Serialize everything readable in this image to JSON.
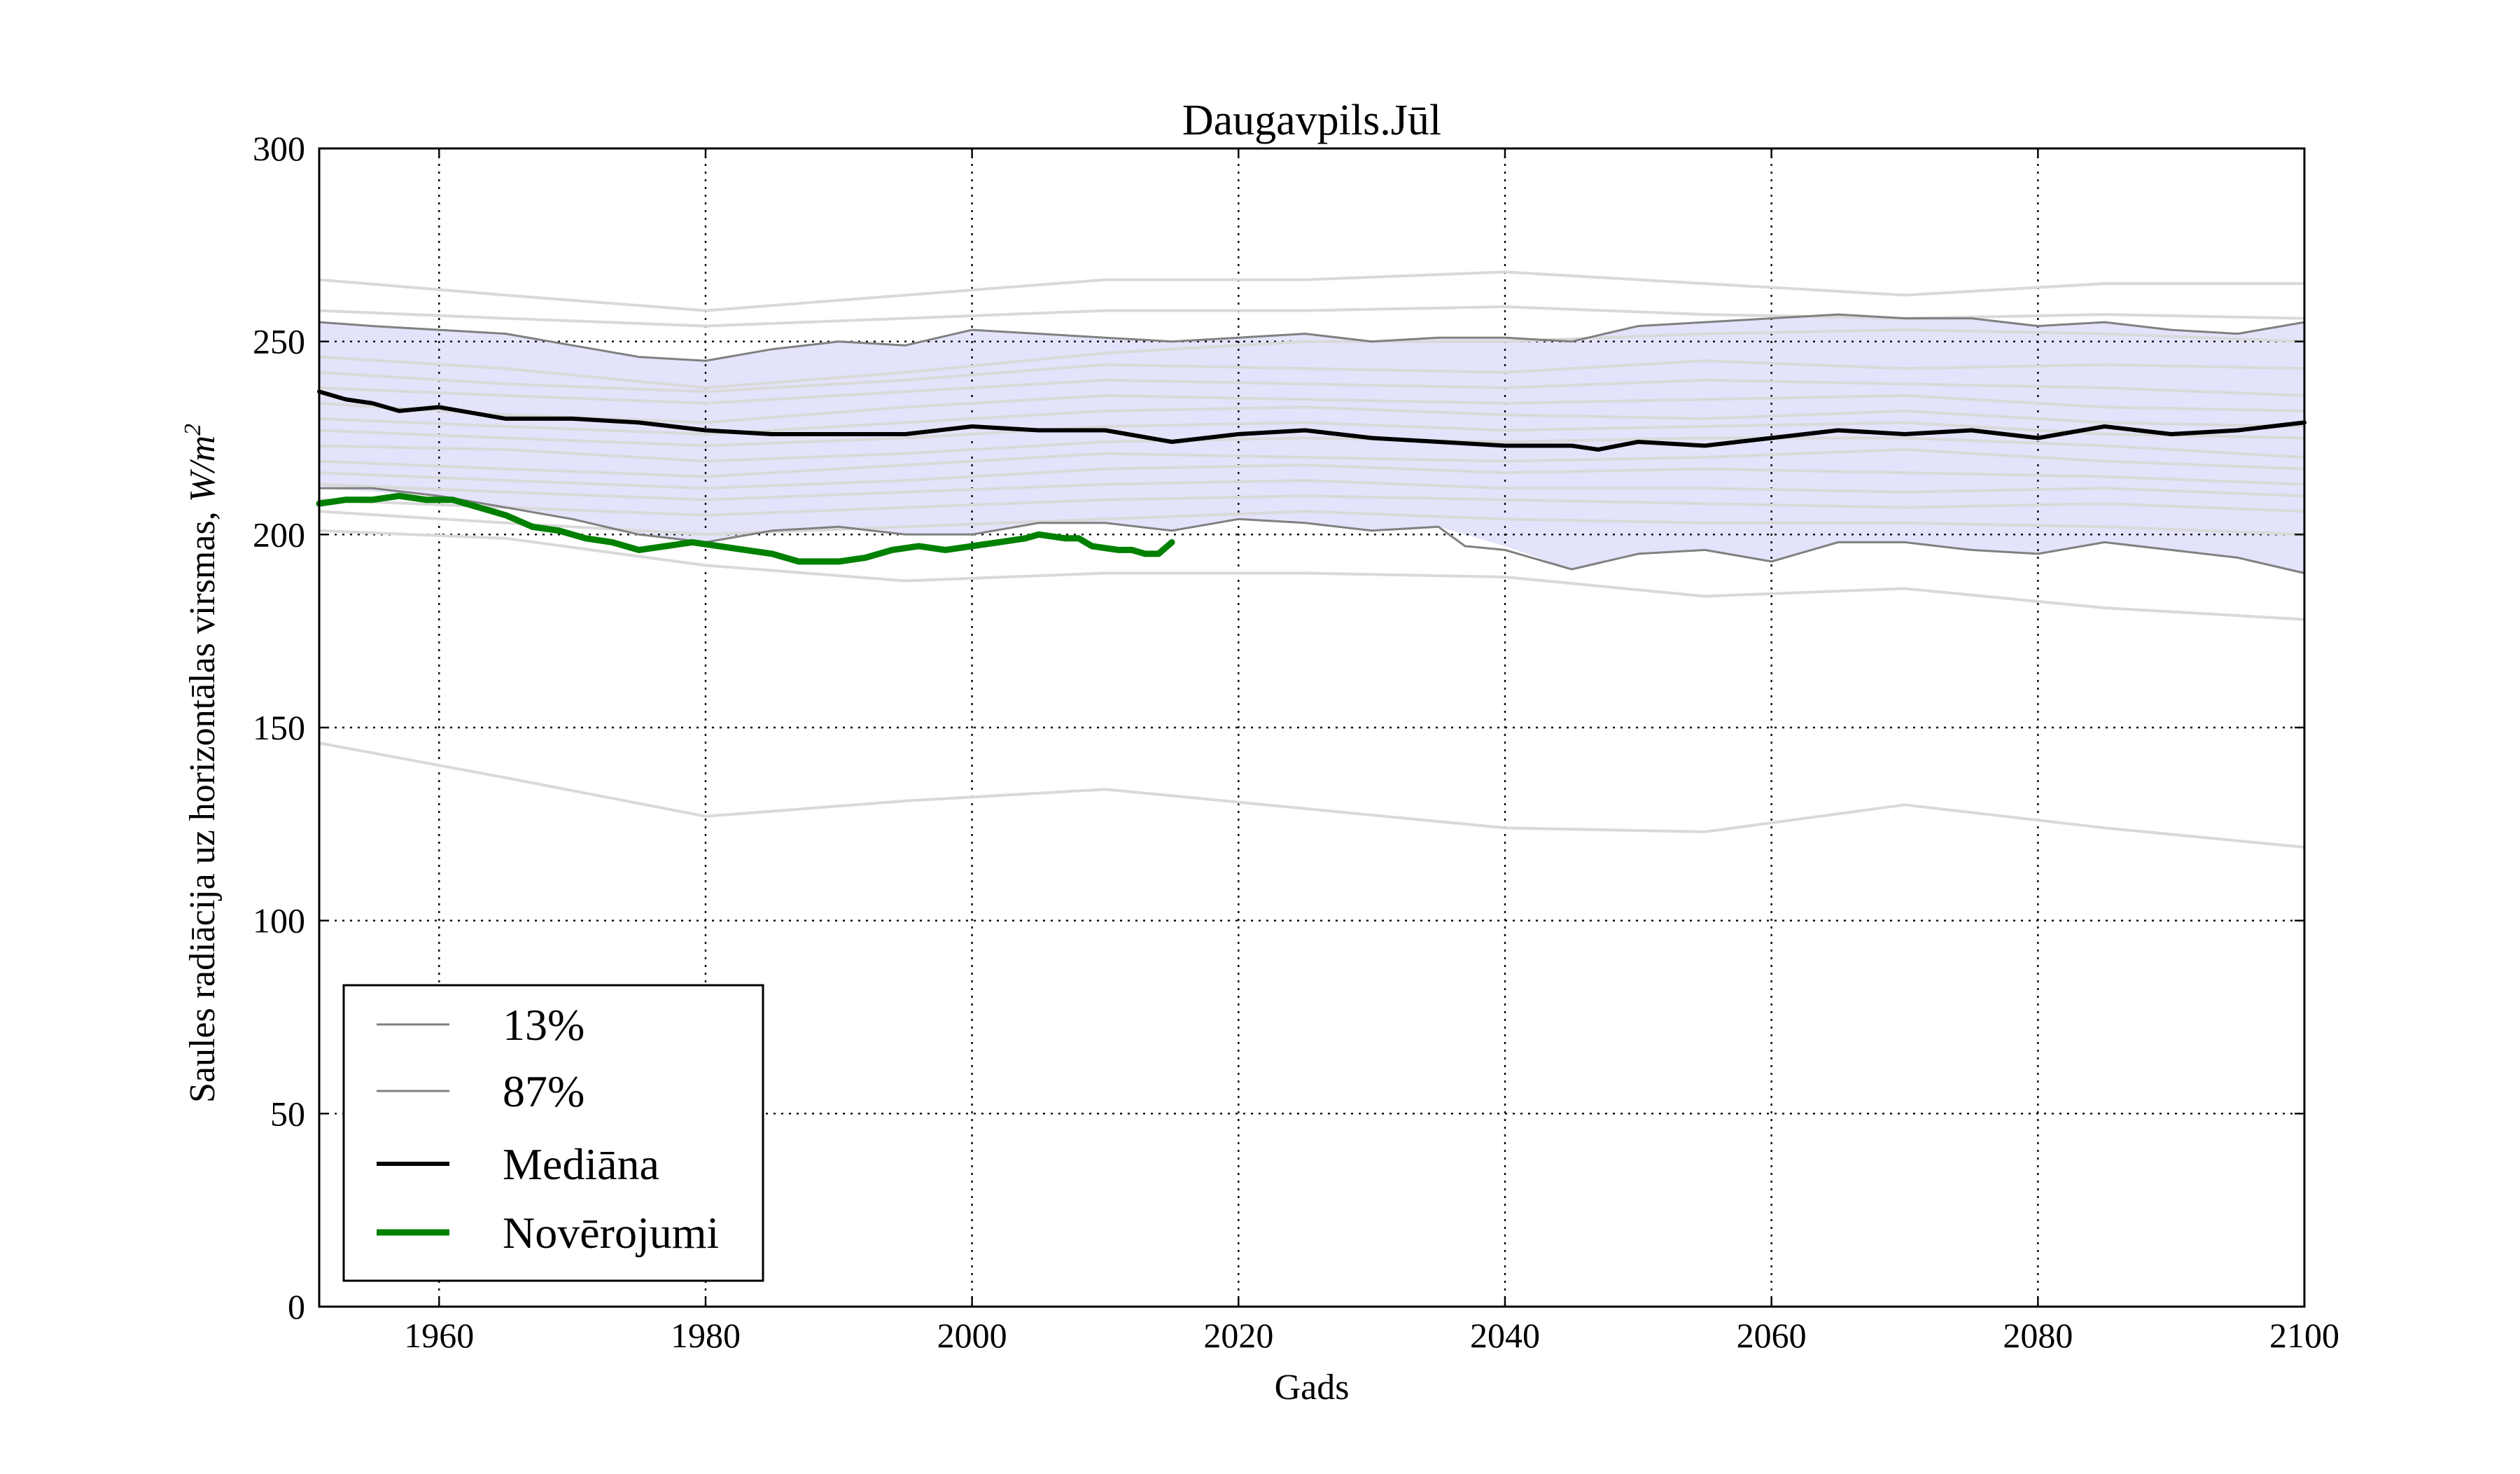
{
  "chart_data": {
    "type": "line",
    "title": "Daugavpils.Jūl",
    "xlabel": "Gads",
    "ylabel": "Saules radiācija uz horizontālas virsmas, W/m²",
    "ylabel_text": "Saules radiācija uz horizontālas virsmas, ",
    "ylabel_unit": "W/m",
    "ylabel_unit_exp": "2",
    "xlim": [
      1951,
      2100
    ],
    "ylim": [
      0,
      300
    ],
    "xticks": [
      1960,
      1980,
      2000,
      2020,
      2040,
      2060,
      2080,
      2100
    ],
    "yticks": [
      0,
      50,
      100,
      150,
      200,
      250,
      300
    ],
    "grid": true,
    "legend_placement": "lower-left",
    "band": {
      "name": "13%–87%",
      "color": "#e3e3fb",
      "x": [
        1951,
        1960,
        1965,
        1970,
        1975,
        1980,
        1985,
        1990,
        1995,
        2000,
        2005,
        2010,
        2015,
        2020,
        2025,
        2030,
        2035,
        2040,
        2045,
        2050,
        2055,
        2060,
        2065,
        2070,
        2075,
        2080,
        2085,
        2090,
        2095,
        2100
      ],
      "lower": [
        212,
        210,
        207,
        204,
        200,
        198,
        201,
        202,
        200,
        200,
        203,
        203,
        201,
        204,
        203,
        201,
        202,
        197,
        191,
        195,
        196,
        193,
        198,
        198,
        196,
        195,
        198,
        196,
        194,
        190
      ],
      "upper": [
        255,
        253,
        252,
        249,
        246,
        245,
        248,
        250,
        249,
        253,
        252,
        251,
        250,
        251,
        252,
        250,
        251,
        251,
        250,
        254,
        255,
        256,
        257,
        256,
        256,
        254,
        255,
        253,
        252,
        255
      ]
    },
    "ensemble": {
      "color": "#d9d9d9",
      "x": [
        1951,
        1965,
        1980,
        1995,
        2010,
        2025,
        2040,
        2055,
        2070,
        2085,
        2100
      ],
      "members": [
        [
          266,
          262,
          258,
          262,
          266,
          266,
          268,
          265,
          262,
          265,
          265
        ],
        [
          258,
          256,
          254,
          256,
          258,
          258,
          259,
          257,
          256,
          257,
          256
        ],
        [
          246,
          243,
          238,
          242,
          247,
          250,
          250,
          252,
          253,
          252,
          250
        ],
        [
          242,
          239,
          237,
          240,
          244,
          243,
          242,
          245,
          243,
          244,
          243
        ],
        [
          238,
          236,
          234,
          237,
          240,
          239,
          238,
          240,
          239,
          238,
          236
        ],
        [
          234,
          231,
          229,
          233,
          236,
          235,
          234,
          235,
          236,
          233,
          232
        ],
        [
          230,
          228,
          226,
          229,
          232,
          233,
          231,
          230,
          232,
          229,
          228
        ],
        [
          227,
          225,
          223,
          225,
          228,
          229,
          227,
          228,
          229,
          226,
          225
        ],
        [
          223,
          222,
          219,
          221,
          224,
          225,
          224,
          225,
          225,
          223,
          220
        ],
        [
          219,
          217,
          215,
          218,
          221,
          220,
          219,
          220,
          222,
          219,
          217
        ],
        [
          216,
          214,
          212,
          214,
          217,
          218,
          216,
          217,
          216,
          215,
          213
        ],
        [
          213,
          211,
          209,
          211,
          213,
          214,
          212,
          212,
          211,
          212,
          210
        ],
        [
          209,
          207,
          205,
          207,
          209,
          210,
          209,
          208,
          207,
          208,
          206
        ],
        [
          206,
          203,
          200,
          202,
          204,
          206,
          204,
          203,
          203,
          202,
          200
        ],
        [
          201,
          199,
          192,
          188,
          190,
          190,
          189,
          184,
          186,
          181,
          178
        ],
        [
          146,
          137,
          127,
          131,
          134,
          129,
          124,
          123,
          130,
          124,
          119
        ]
      ]
    },
    "series": [
      {
        "name": "13%",
        "color": "#808080",
        "width": 3,
        "x": [
          1951,
          1955,
          1960,
          1965,
          1970,
          1975,
          1980,
          1985,
          1990,
          1995,
          2000,
          2005,
          2010,
          2015,
          2020,
          2025,
          2030,
          2035,
          2037,
          2040,
          2045,
          2050,
          2055,
          2060,
          2065,
          2070,
          2075,
          2080,
          2085,
          2090,
          2095,
          2100
        ],
        "values": [
          212,
          212,
          210,
          207,
          204,
          200,
          198,
          201,
          202,
          200,
          200,
          203,
          203,
          201,
          204,
          203,
          201,
          202,
          197,
          196,
          191,
          195,
          196,
          193,
          198,
          198,
          196,
          195,
          198,
          196,
          194,
          190
        ]
      },
      {
        "name": "87%",
        "color": "#808080",
        "width": 3,
        "x": [
          1951,
          1955,
          1960,
          1965,
          1970,
          1975,
          1980,
          1985,
          1990,
          1995,
          2000,
          2005,
          2010,
          2015,
          2020,
          2025,
          2030,
          2035,
          2040,
          2045,
          2050,
          2055,
          2060,
          2065,
          2070,
          2075,
          2080,
          2085,
          2090,
          2095,
          2100
        ],
        "values": [
          255,
          254,
          253,
          252,
          249,
          246,
          245,
          248,
          250,
          249,
          253,
          252,
          251,
          250,
          251,
          252,
          250,
          251,
          251,
          250,
          254,
          255,
          256,
          257,
          256,
          256,
          254,
          255,
          253,
          252,
          255
        ]
      },
      {
        "name": "Mediāna",
        "color": "#000000",
        "width": 6,
        "x": [
          1951,
          1953,
          1955,
          1957,
          1960,
          1965,
          1970,
          1975,
          1980,
          1985,
          1990,
          1995,
          2000,
          2005,
          2010,
          2015,
          2020,
          2025,
          2030,
          2035,
          2040,
          2045,
          2047,
          2050,
          2055,
          2060,
          2065,
          2070,
          2075,
          2080,
          2085,
          2090,
          2095,
          2100
        ],
        "values": [
          237,
          235,
          234,
          232,
          233,
          230,
          230,
          229,
          227,
          226,
          226,
          226,
          228,
          227,
          227,
          224,
          226,
          227,
          225,
          224,
          223,
          223,
          222,
          224,
          223,
          225,
          227,
          226,
          227,
          225,
          228,
          226,
          227,
          229
        ]
      },
      {
        "name": "Novērojumi",
        "color": "#008000",
        "width": 9,
        "x": [
          1951,
          1953,
          1955,
          1957,
          1959,
          1961,
          1963,
          1965,
          1967,
          1969,
          1971,
          1973,
          1975,
          1977,
          1979,
          1981,
          1983,
          1985,
          1987,
          1988,
          1990,
          1992,
          1994,
          1996,
          1998,
          2000,
          2002,
          2004,
          2005,
          2007,
          2008,
          2009,
          2011,
          2012,
          2013,
          2014,
          2015
        ],
        "values": [
          208,
          209,
          209,
          210,
          209,
          209,
          207,
          205,
          202,
          201,
          199,
          198,
          196,
          197,
          198,
          197,
          196,
          195,
          193,
          193,
          193,
          194,
          196,
          197,
          196,
          197,
          198,
          199,
          200,
          199,
          199,
          197,
          196,
          196,
          195,
          195,
          198
        ]
      }
    ]
  }
}
